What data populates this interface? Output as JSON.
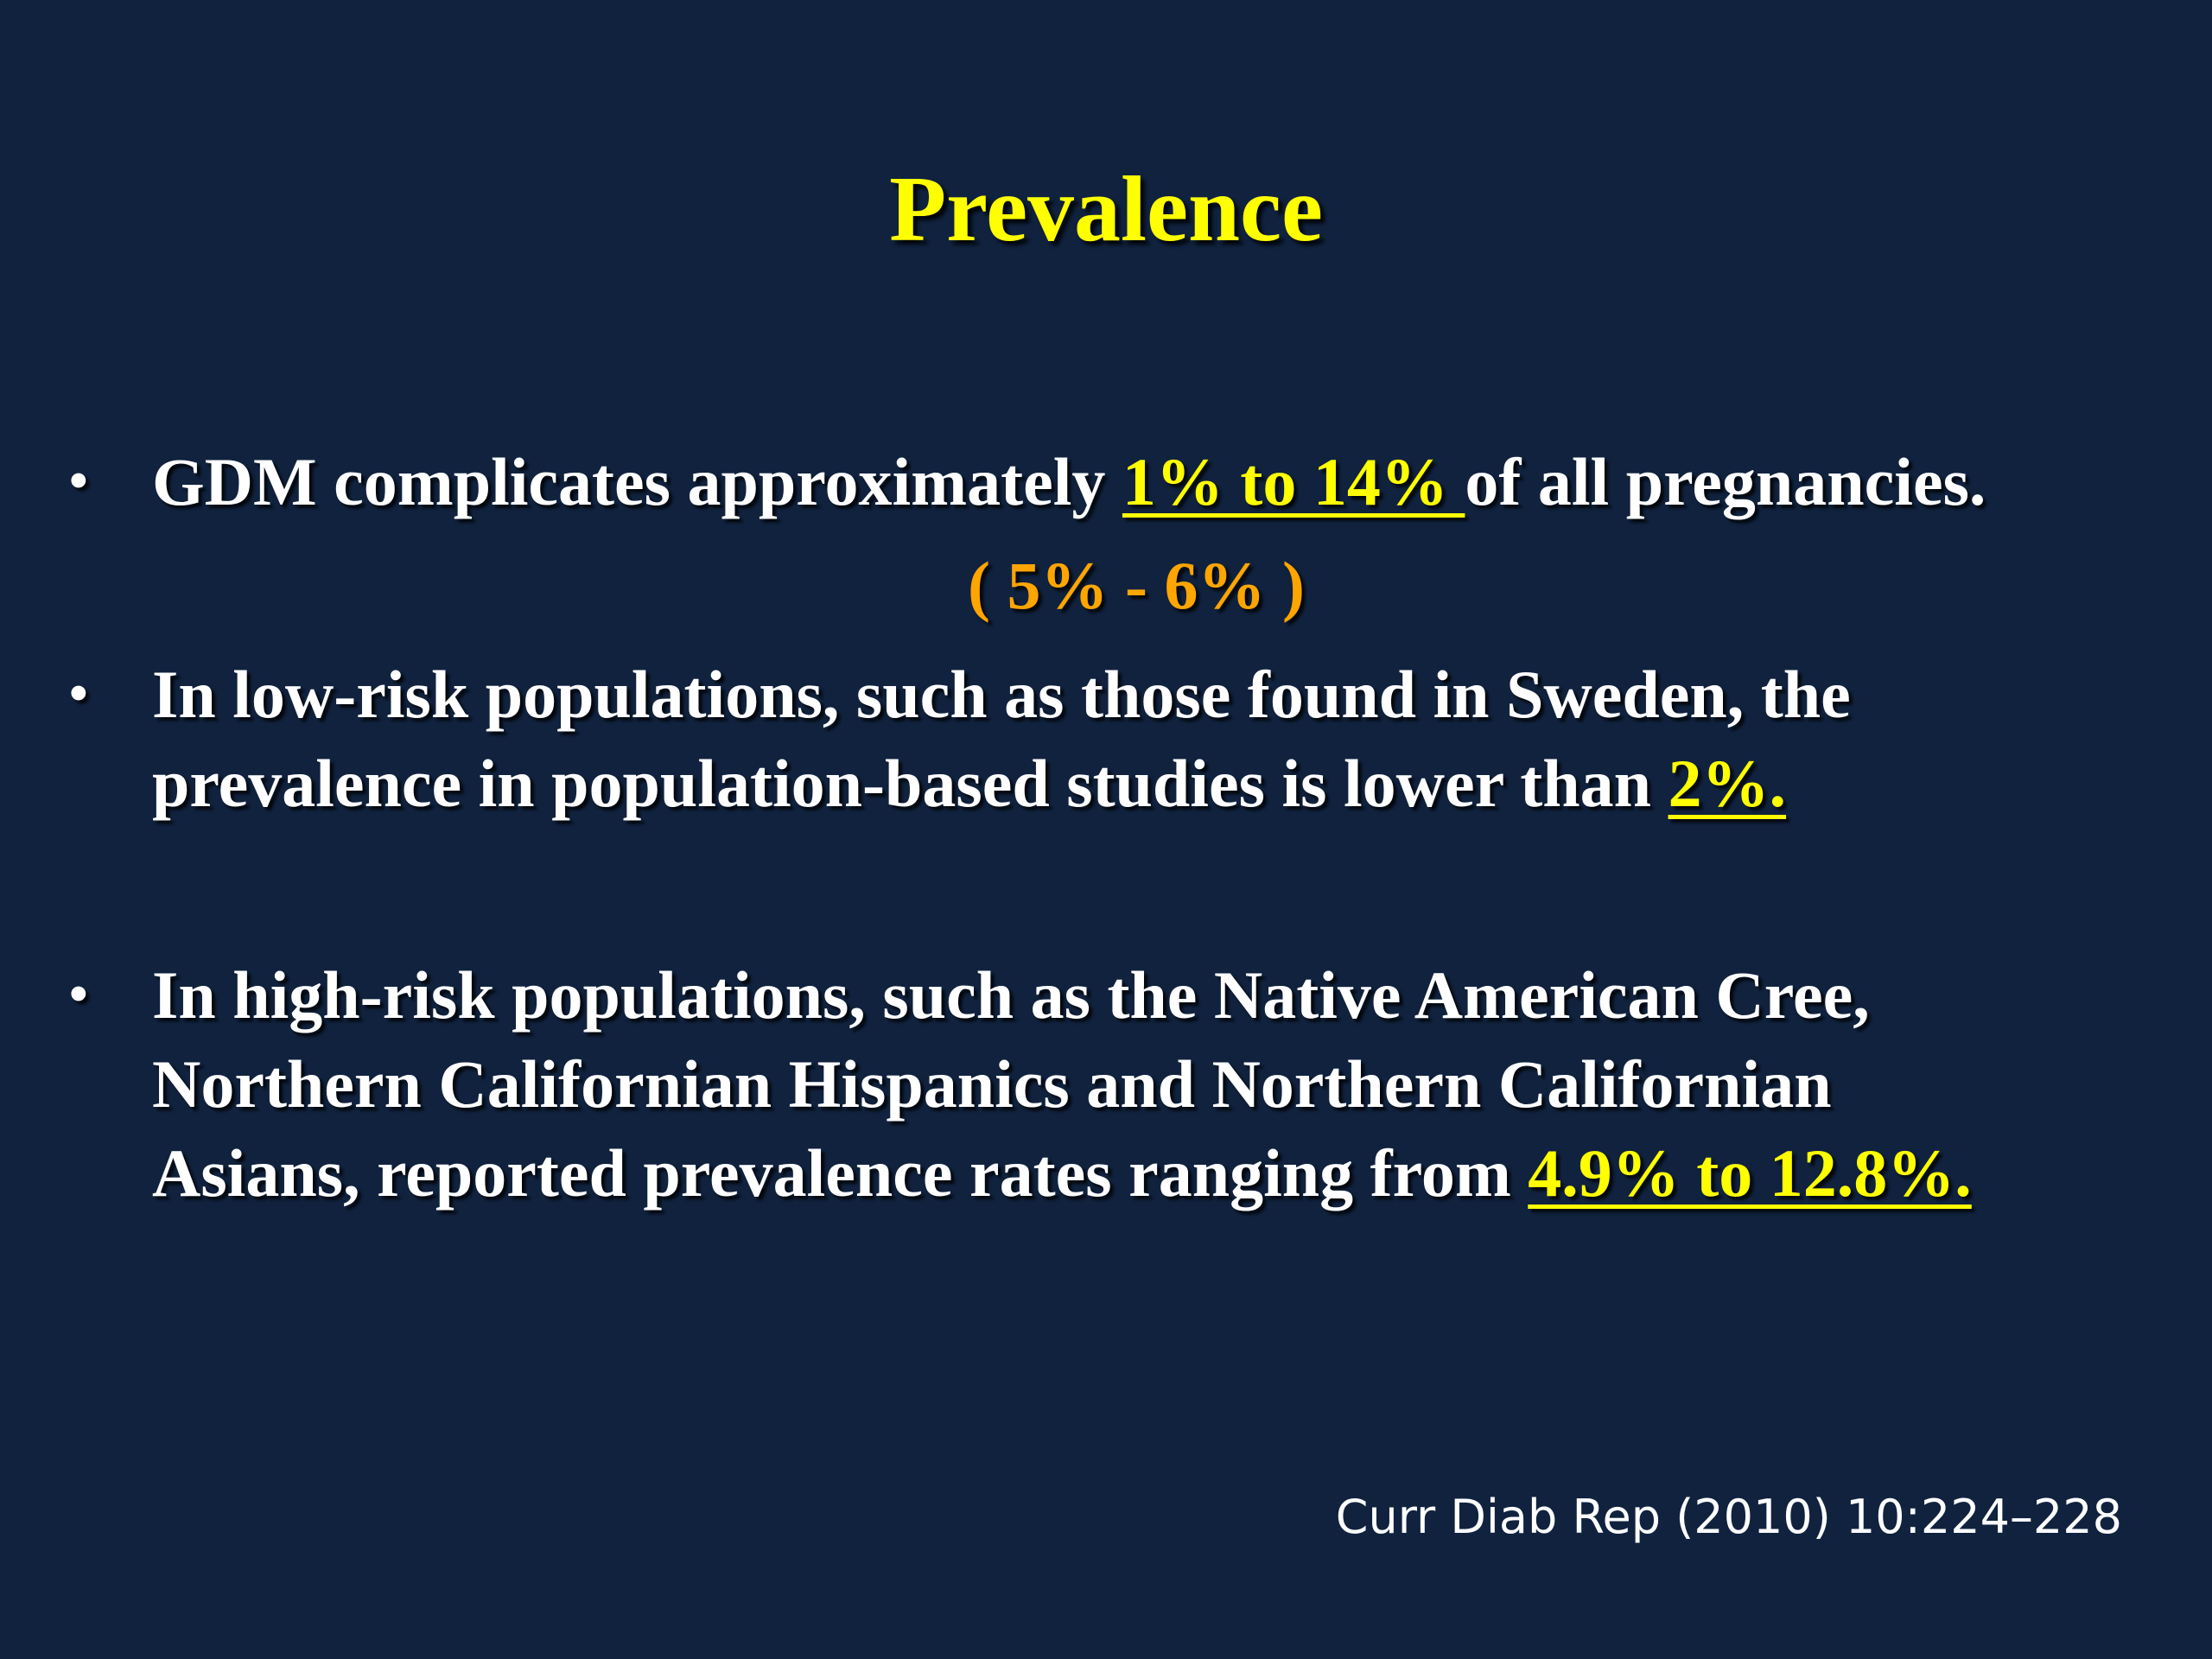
{
  "slide": {
    "title": "Prevalence",
    "bullets": [
      {
        "bullet_char": "•",
        "lines": [
          {
            "before": "GDM complicates approximately ",
            "highlight": "1% to 14% ",
            "after": "of all pregnancies."
          }
        ],
        "sub_note": "( 5% - 6% )"
      },
      {
        "bullet_char": "•",
        "lines": [
          {
            "text": "In low-risk populations, such as those found in Sweden, the"
          },
          {
            "before": "prevalence in population-based studies is lower than ",
            "highlight": "2%."
          }
        ]
      },
      {
        "bullet_char": "•",
        "lines": [
          {
            "text": "In high-risk populations, such as the Native American Cree,"
          },
          {
            "text": "Northern Californian Hispanics and Northern Californian"
          },
          {
            "before": "Asians, reported prevalence rates ranging from ",
            "highlight": "4.9% to 12.8%."
          }
        ]
      }
    ],
    "citation": "Curr Diab Rep (2010) 10:224–228",
    "colors": {
      "background": "#10223e",
      "title": "#ffff00",
      "body_text": "#ffffff",
      "highlight": "#ffff00",
      "sub_note": "#ffa500"
    }
  }
}
